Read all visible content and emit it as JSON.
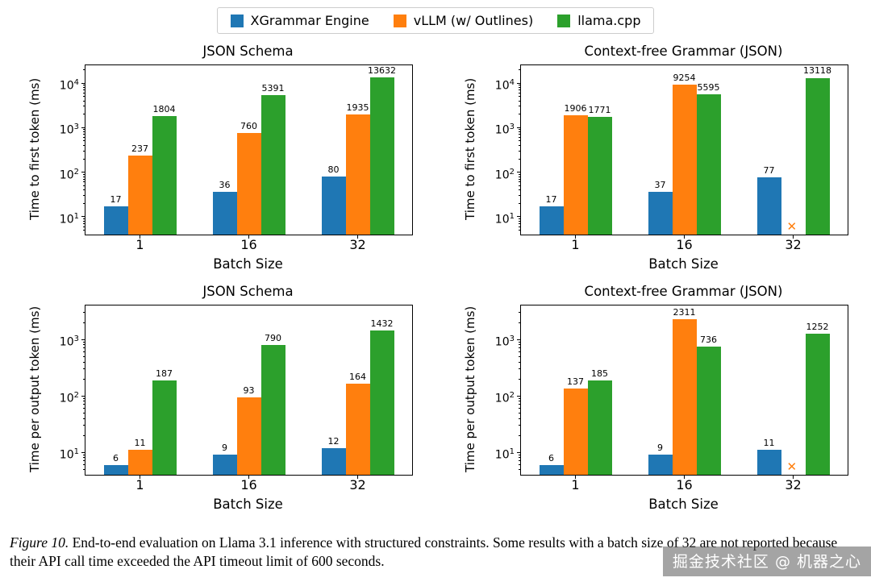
{
  "legend": {
    "items": [
      {
        "label": "XGrammar Engine",
        "color": "#1f77b4"
      },
      {
        "label": "vLLM (w/ Outlines)",
        "color": "#ff7f0e"
      },
      {
        "label": "llama.cpp",
        "color": "#2ca02c"
      }
    ]
  },
  "chart_data": [
    {
      "type": "bar",
      "title": "JSON Schema",
      "xlabel": "Batch Size",
      "ylabel": "Time to first token (ms)",
      "yscale": "log",
      "ylim": [
        4,
        25000
      ],
      "ytick_exponents": [
        1,
        2,
        3,
        4
      ],
      "categories": [
        "1",
        "16",
        "32"
      ],
      "series": [
        {
          "name": "XGrammar Engine",
          "color": "#1f77b4",
          "values": [
            17,
            36,
            80
          ]
        },
        {
          "name": "vLLM (w/ Outlines)",
          "color": "#ff7f0e",
          "values": [
            237,
            760,
            1935
          ]
        },
        {
          "name": "llama.cpp",
          "color": "#2ca02c",
          "values": [
            1804,
            5391,
            13632
          ]
        }
      ],
      "missing_marker": null
    },
    {
      "type": "bar",
      "title": "Context-free Grammar (JSON)",
      "xlabel": "Batch Size",
      "ylabel": "Time to first token (ms)",
      "yscale": "log",
      "ylim": [
        4,
        25000
      ],
      "ytick_exponents": [
        1,
        2,
        3,
        4
      ],
      "categories": [
        "1",
        "16",
        "32"
      ],
      "series": [
        {
          "name": "XGrammar Engine",
          "color": "#1f77b4",
          "values": [
            17,
            37,
            77
          ]
        },
        {
          "name": "vLLM (w/ Outlines)",
          "color": "#ff7f0e",
          "values": [
            1906,
            9254,
            null
          ]
        },
        {
          "name": "llama.cpp",
          "color": "#2ca02c",
          "values": [
            1771,
            5595,
            13118
          ]
        }
      ],
      "missing_marker": {
        "series": 1,
        "category": 2,
        "symbol": "✕",
        "color": "#ff7f0e"
      }
    },
    {
      "type": "bar",
      "title": "JSON Schema",
      "xlabel": "Batch Size",
      "ylabel": "Time per output token (ms)",
      "yscale": "log",
      "ylim": [
        4,
        4000
      ],
      "ytick_exponents": [
        1,
        2,
        3
      ],
      "categories": [
        "1",
        "16",
        "32"
      ],
      "series": [
        {
          "name": "XGrammar Engine",
          "color": "#1f77b4",
          "values": [
            6,
            9,
            12
          ]
        },
        {
          "name": "vLLM (w/ Outlines)",
          "color": "#ff7f0e",
          "values": [
            11,
            93,
            164
          ]
        },
        {
          "name": "llama.cpp",
          "color": "#2ca02c",
          "values": [
            187,
            790,
            1432
          ]
        }
      ],
      "missing_marker": null
    },
    {
      "type": "bar",
      "title": "Context-free Grammar (JSON)",
      "xlabel": "Batch Size",
      "ylabel": "Time per output token (ms)",
      "yscale": "log",
      "ylim": [
        4,
        4000
      ],
      "ytick_exponents": [
        1,
        2,
        3
      ],
      "categories": [
        "1",
        "16",
        "32"
      ],
      "series": [
        {
          "name": "XGrammar Engine",
          "color": "#1f77b4",
          "values": [
            6,
            9,
            11
          ]
        },
        {
          "name": "vLLM (w/ Outlines)",
          "color": "#ff7f0e",
          "values": [
            137,
            2311,
            null
          ]
        },
        {
          "name": "llama.cpp",
          "color": "#2ca02c",
          "values": [
            185,
            736,
            1252
          ]
        }
      ],
      "missing_marker": {
        "series": 1,
        "category": 2,
        "symbol": "✕",
        "color": "#ff7f0e"
      }
    }
  ],
  "caption": {
    "label": "Figure 10.",
    "text": "End-to-end evaluation on Llama 3.1 inference with structured constraints. Some results with a batch size of 32 are not reported because their API call time exceeded the API timeout limit of 600 seconds."
  },
  "watermark": {
    "text": "掘金技术社区 @ 机器之心"
  }
}
